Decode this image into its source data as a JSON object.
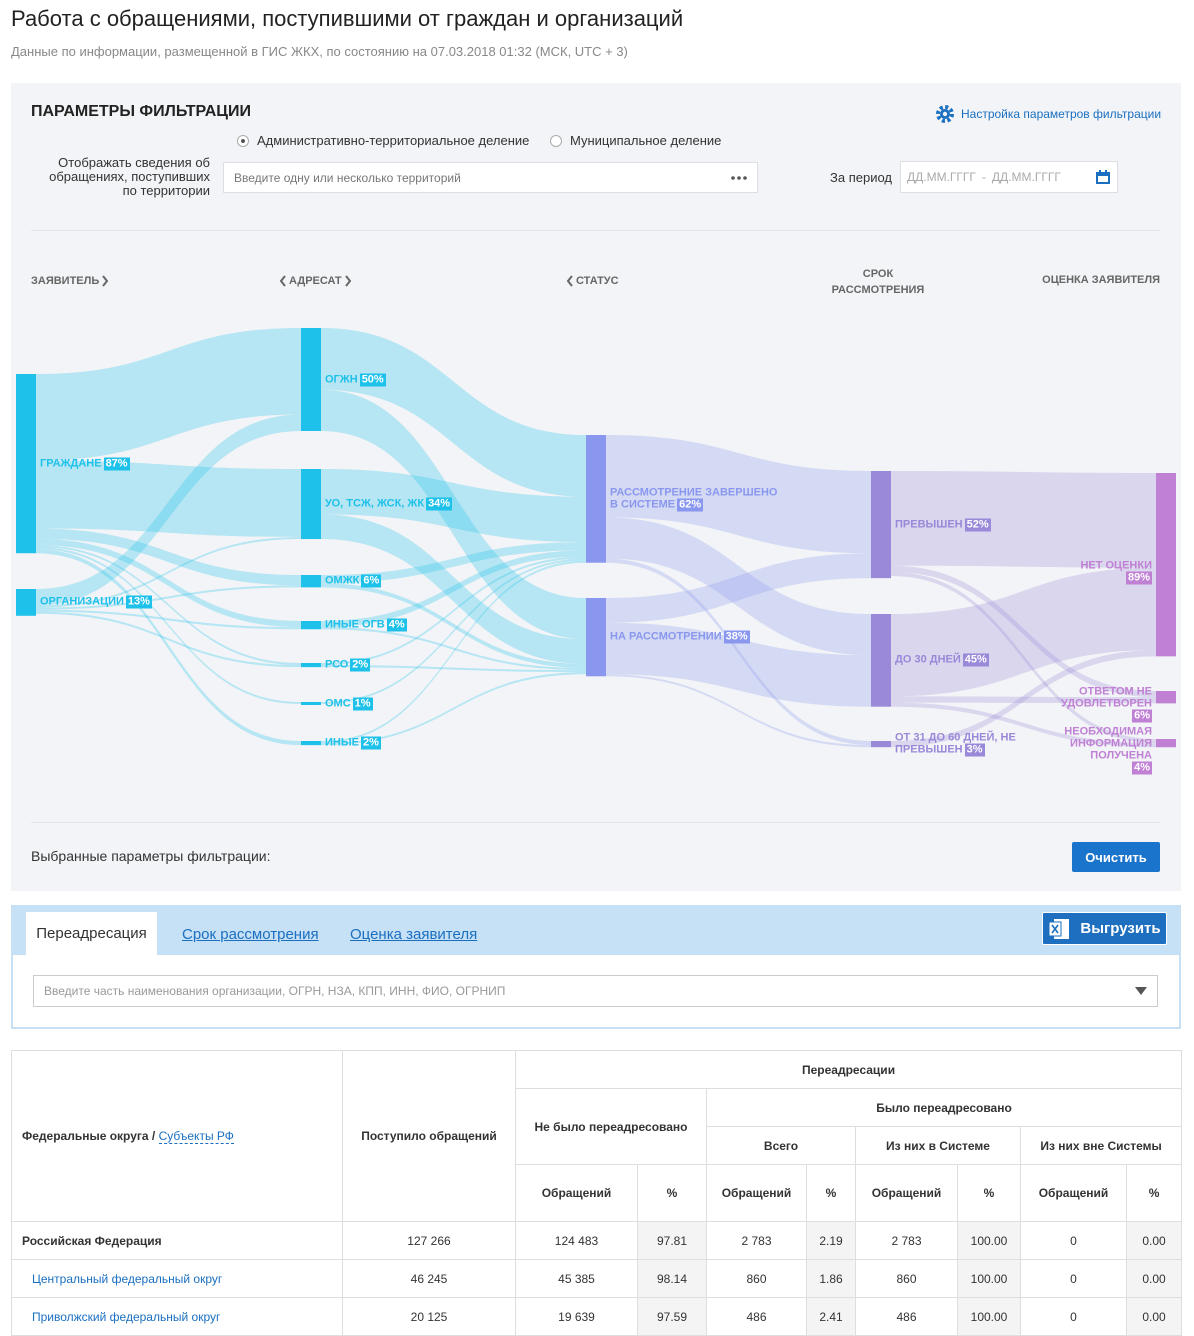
{
  "header": {
    "title": "Работа с обращениями, поступившими от граждан и организаций",
    "subtitle": "Данные по информации, размещенной в ГИС ЖКХ, по состоянию на 07.03.2018 01:32 (МСК, UTC + 3)"
  },
  "filter": {
    "title": "ПАРАМЕТРЫ ФИЛЬТРАЦИИ",
    "settings_link": "Настройка параметров фильтрации",
    "radio_options": [
      "Административно-территориальное деление",
      "Муниципальное деление"
    ],
    "territory_label": "Отображать сведения об обращениях, поступивших по территории",
    "territory_placeholder": "Введите одну или несколько территорий",
    "period_label": "За период",
    "date_from_placeholder": "ДД.ММ.ГГГГ",
    "date_separator": "-",
    "date_to_placeholder": "ДД.ММ.ГГГГ",
    "selected_label": "Выбранные параметры фильтрации:",
    "clear_button": "Очистить"
  },
  "chart_data": {
    "type": "sankey",
    "columns": [
      {
        "title": "ЗАЯВИТЕЛЬ",
        "color": "#1ec1ea",
        "nodes": [
          {
            "label": "ГРАЖДАНЕ",
            "value": 87,
            "value_label": "87%"
          },
          {
            "label": "ОРГАНИЗАЦИИ",
            "value": 13,
            "value_label": "13%"
          }
        ]
      },
      {
        "title": "АДРЕСАТ",
        "color": "#1ec1ea",
        "nodes": [
          {
            "label": "ОГЖН",
            "value": 50,
            "value_label": "50%"
          },
          {
            "label": "УО, ТСЖ, ЖСК, ЖК",
            "value": 34,
            "value_label": "34%"
          },
          {
            "label": "ОМЖК",
            "value": 6,
            "value_label": "6%"
          },
          {
            "label": "ИНЫЕ ОГВ",
            "value": 4,
            "value_label": "4%"
          },
          {
            "label": "РСО",
            "value": 2,
            "value_label": "2%"
          },
          {
            "label": "ОМС",
            "value": 1,
            "value_label": "1%"
          },
          {
            "label": "ИНЫЕ",
            "value": 2,
            "value_label": "2%"
          }
        ]
      },
      {
        "title": "СТАТУС",
        "color": "#8a97ee",
        "nodes": [
          {
            "label": "РАССМОТРЕНИЕ ЗАВЕРШЕНО В СИСТЕМЕ",
            "value": 62,
            "value_label": "62%"
          },
          {
            "label": "НА РАССМОТРЕНИИ",
            "value": 38,
            "value_label": "38%"
          }
        ]
      },
      {
        "title": "СРОК РАССМОТРЕНИЯ",
        "color": "#9a88d9",
        "nodes": [
          {
            "label": "ПРЕВЫШЕН",
            "value": 52,
            "value_label": "52%"
          },
          {
            "label": "ДО 30 ДНЕЙ",
            "value": 45,
            "value_label": "45%"
          },
          {
            "label": "ОТ 31 ДО 60 ДНЕЙ, НЕ ПРЕВЫШЕН",
            "value": 3,
            "value_label": "3%"
          }
        ]
      },
      {
        "title": "ОЦЕНКА ЗАЯВИТЕЛЯ",
        "color": "#c080d4",
        "nodes": [
          {
            "label": "НЕТ ОЦЕНКИ",
            "value": 89,
            "value_label": "89%"
          },
          {
            "label": "ОТВЕТОМ НЕ УДОВЛЕТВОРЕН",
            "value": 6,
            "value_label": "6%"
          },
          {
            "label": "НЕОБХОДИМАЯ ИНФОРМАЦИЯ ПОЛУЧЕНА",
            "value": 4,
            "value_label": "4%"
          }
        ]
      }
    ],
    "links": [
      {
        "source": "ГРАЖДАНЕ",
        "target": "ОГЖН",
        "value": 42
      },
      {
        "source": "ГРАЖДАНЕ",
        "target": "УО, ТСЖ, ЖСК, ЖК",
        "value": 33
      },
      {
        "source": "ГРАЖДАНЕ",
        "target": "ОМЖК",
        "value": 5
      },
      {
        "source": "ГРАЖДАНЕ",
        "target": "ИНЫЕ ОГВ",
        "value": 3
      },
      {
        "source": "ГРАЖДАНЕ",
        "target": "РСО",
        "value": 1
      },
      {
        "source": "ГРАЖДАНЕ",
        "target": "ОМС",
        "value": 1
      },
      {
        "source": "ГРАЖДАНЕ",
        "target": "ИНЫЕ",
        "value": 2
      },
      {
        "source": "ОРГАНИЗАЦИИ",
        "target": "ОГЖН",
        "value": 8
      },
      {
        "source": "ОРГАНИЗАЦИИ",
        "target": "УО, ТСЖ, ЖСК, ЖК",
        "value": 1
      },
      {
        "source": "ОРГАНИЗАЦИИ",
        "target": "ОМЖК",
        "value": 1
      },
      {
        "source": "ОРГАНИЗАЦИИ",
        "target": "ИНЫЕ ОГВ",
        "value": 1
      },
      {
        "source": "ОРГАНИЗАЦИИ",
        "target": "РСО",
        "value": 1
      },
      {
        "source": "ОГЖН",
        "target": "РАССМОТРЕНИЕ ЗАВЕРШЕНО В СИСТЕМЕ",
        "value": 30
      },
      {
        "source": "ОГЖН",
        "target": "НА РАССМОТРЕНИИ",
        "value": 20
      },
      {
        "source": "УО, ТСЖ, ЖСК, ЖК",
        "target": "РАССМОТРЕНИЕ ЗАВЕРШЕНО В СИСТЕМЕ",
        "value": 22
      },
      {
        "source": "УО, ТСЖ, ЖСК, ЖК",
        "target": "НА РАССМОТРЕНИИ",
        "value": 12
      },
      {
        "source": "ОМЖК",
        "target": "РАССМОТРЕНИЕ ЗАВЕРШЕНО В СИСТЕМЕ",
        "value": 4
      },
      {
        "source": "ОМЖК",
        "target": "НА РАССМОТРЕНИИ",
        "value": 2
      },
      {
        "source": "ИНЫЕ ОГВ",
        "target": "РАССМОТРЕНИЕ ЗАВЕРШЕНО В СИСТЕМЕ",
        "value": 3
      },
      {
        "source": "ИНЫЕ ОГВ",
        "target": "НА РАССМОТРЕНИИ",
        "value": 1
      },
      {
        "source": "РСО",
        "target": "РАССМОТРЕНИЕ ЗАВЕРШЕНО В СИСТЕМЕ",
        "value": 1
      },
      {
        "source": "РСО",
        "target": "НА РАССМОТРЕНИИ",
        "value": 1
      },
      {
        "source": "ОМС",
        "target": "РАССМОТРЕНИЕ ЗАВЕРШЕНО В СИСТЕМЕ",
        "value": 1
      },
      {
        "source": "ИНЫЕ",
        "target": "РАССМОТРЕНИЕ ЗАВЕРШЕНО В СИСТЕМЕ",
        "value": 1
      },
      {
        "source": "ИНЫЕ",
        "target": "НА РАССМОТРЕНИИ",
        "value": 1
      },
      {
        "source": "РАССМОТРЕНИЕ ЗАВЕРШЕНО В СИСТЕМЕ",
        "target": "ПРЕВЫШЕН",
        "value": 40
      },
      {
        "source": "РАССМОТРЕНИЕ ЗАВЕРШЕНО В СИСТЕМЕ",
        "target": "ДО 30 ДНЕЙ",
        "value": 20
      },
      {
        "source": "РАССМОТРЕНИЕ ЗАВЕРШЕНО В СИСТЕМЕ",
        "target": "ОТ 31 ДО 60 ДНЕЙ, НЕ ПРЕВЫШЕН",
        "value": 2
      },
      {
        "source": "НА РАССМОТРЕНИИ",
        "target": "ПРЕВЫШЕН",
        "value": 12
      },
      {
        "source": "НА РАССМОТРЕНИИ",
        "target": "ДО 30 ДНЕЙ",
        "value": 25
      },
      {
        "source": "НА РАССМОТРЕНИИ",
        "target": "ОТ 31 ДО 60 ДНЕЙ, НЕ ПРЕВЫШЕН",
        "value": 1
      },
      {
        "source": "ПРЕВЫШЕН",
        "target": "НЕТ ОЦЕНКИ",
        "value": 46
      },
      {
        "source": "ПРЕВЫШЕН",
        "target": "ОТВЕТОМ НЕ УДОВЛЕТВОРЕН",
        "value": 3
      },
      {
        "source": "ПРЕВЫШЕН",
        "target": "НЕОБХОДИМАЯ ИНФОРМАЦИЯ ПОЛУЧЕНА",
        "value": 2
      },
      {
        "source": "ДО 30 ДНЕЙ",
        "target": "НЕТ ОЦЕНКИ",
        "value": 40
      },
      {
        "source": "ДО 30 ДНЕЙ",
        "target": "ОТВЕТОМ НЕ УДОВЛЕТВОРЕН",
        "value": 3
      },
      {
        "source": "ДО 30 ДНЕЙ",
        "target": "НЕОБХОДИМАЯ ИНФОРМАЦИЯ ПОЛУЧЕНА",
        "value": 2
      },
      {
        "source": "ОТ 31 ДО 60 ДНЕЙ, НЕ ПРЕВЫШЕН",
        "target": "НЕТ ОЦЕНКИ",
        "value": 3
      }
    ]
  },
  "tabs": {
    "items": [
      "Переадресация",
      "Срок рассмотрения",
      "Оценка заявителя"
    ],
    "export_button": "Выгрузить",
    "search_placeholder": "Введите часть наименования организации, ОГРН, НЗА, КПП, ИНН, ФИО, ОГРНИП"
  },
  "table": {
    "region_header": "Федеральные округа",
    "region_separator": "/",
    "region_link": "Субъекты РФ",
    "received_header": "Поступило обращений",
    "redirects_header": "Переадресации",
    "not_redirected_header": "Не было переадресовано",
    "redirected_header": "Было переадресовано",
    "total_header": "Всего",
    "in_system_header": "Из них в Системе",
    "outside_system_header": "Из них вне Системы",
    "count_header": "Обращений",
    "percent_header": "%",
    "rows": [
      [
        "Российская Федерация",
        "127 266",
        "124 483",
        "97.81",
        "2 783",
        "2.19",
        "2 783",
        "100.00",
        "0",
        "0.00"
      ],
      [
        "Центральный федеральный округ",
        "46 245",
        "45 385",
        "98.14",
        "860",
        "1.86",
        "860",
        "100.00",
        "0",
        "0.00"
      ],
      [
        "Приволжский федеральный округ",
        "20 125",
        "19 639",
        "97.59",
        "486",
        "2.41",
        "486",
        "100.00",
        "0",
        "0.00"
      ]
    ]
  }
}
